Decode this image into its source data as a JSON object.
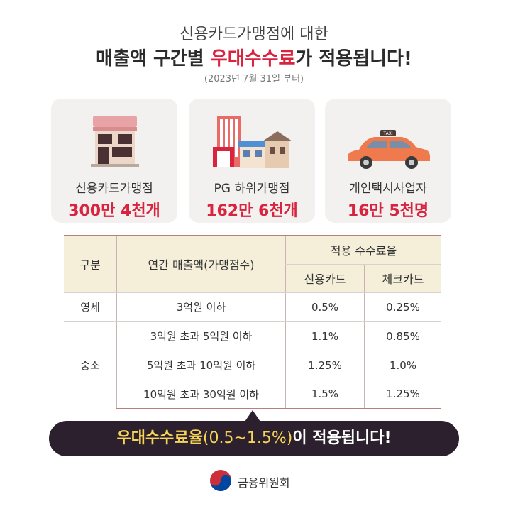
{
  "header": {
    "line1": "신용카드가맹점에 대한",
    "line2_prefix": "매출액 구간별 ",
    "line2_highlight": "우대수수료",
    "line2_suffix": "가 적용됩니다!",
    "line3": "(2023년 7월 31일 부터)"
  },
  "cards": [
    {
      "label": "신용카드가맹점",
      "value": "300만 4천개",
      "icon": "store-icon"
    },
    {
      "label": "PG 하위가맹점",
      "value": "162만 6천개",
      "icon": "buildings-icon"
    },
    {
      "label": "개인택시사업자",
      "value": "16만 5천명",
      "icon": "taxi-icon",
      "taxi_sign": "TAXI"
    }
  ],
  "table": {
    "h_category": "구분",
    "h_sales": "연간 매출액(가맹점수)",
    "h_rate": "적용 수수료율",
    "h_credit": "신용카드",
    "h_check": "체크카드",
    "rows": [
      {
        "category": "영세",
        "sales": "3억원 이하",
        "credit": "0.5%",
        "check": "0.25%"
      },
      {
        "category": "중소",
        "sales": "3억원 초과 5억원 이하",
        "credit": "1.1%",
        "check": "0.85%"
      },
      {
        "category": "",
        "sales": "5억원 초과 10억원 이하",
        "credit": "1.25%",
        "check": "1.0%"
      },
      {
        "category": "",
        "sales": "10억원 초과 30억원 이하",
        "credit": "1.5%",
        "check": "1.25%"
      }
    ]
  },
  "banner": {
    "prefix": "우대수수료율",
    "range": "(0.5~1.5%)",
    "suffix": "이 적용됩니다!"
  },
  "footer": {
    "org": "금융위원회"
  },
  "colors": {
    "accent": "#d8243f",
    "banner_bg": "#2c1f2e",
    "banner_highlight": "#f7d556",
    "header_bg": "#f5efd9",
    "card_bg": "#f2f1ef"
  }
}
